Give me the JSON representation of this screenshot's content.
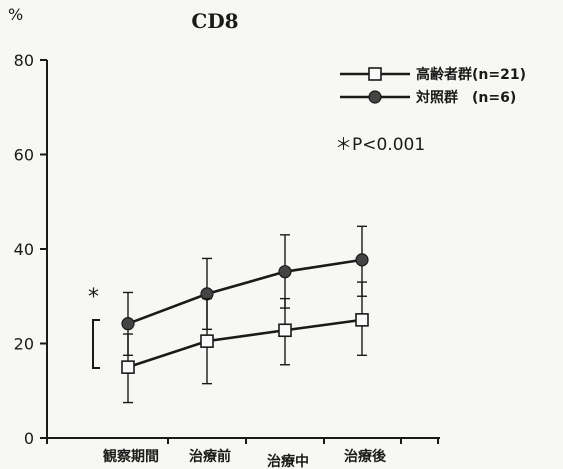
{
  "chart_data": {
    "type": "line",
    "title": "CD8",
    "ylabel": "%",
    "xlabel": "",
    "ylim": [
      0,
      80
    ],
    "yticks": [
      0,
      20,
      40,
      60,
      80
    ],
    "categories": [
      "観察期間",
      "治療前",
      "治療中",
      "治療後"
    ],
    "series": [
      {
        "name": "高齢者群(n=21)",
        "marker": "open-square",
        "values": [
          15,
          20.5,
          22.8,
          25
        ],
        "upper": [
          22,
          29.5,
          29.5,
          33
        ],
        "lower": [
          7.5,
          11.5,
          15.5,
          17.5
        ]
      },
      {
        "name": "対照群　(n=6)",
        "marker": "filled-circle",
        "values": [
          24.2,
          30.5,
          35.2,
          37.7
        ],
        "upper": [
          30.8,
          38,
          43,
          44.8
        ],
        "lower": [
          17.5,
          23,
          27.5,
          30
        ]
      }
    ],
    "annotations": {
      "significance_mark": "*",
      "significance_note": "＊P<0.001"
    },
    "legend_position": "top-right",
    "grid": false
  }
}
